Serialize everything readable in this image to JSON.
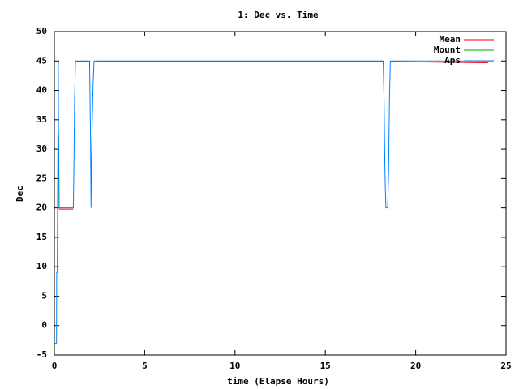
{
  "chart_data": {
    "type": "line",
    "title": "1: Dec vs. Time",
    "x_label": "time (Elapse Hours)",
    "y_label": "Dec",
    "xlim": [
      0,
      25
    ],
    "xticks": [
      0,
      5,
      10,
      15,
      20,
      25
    ],
    "ylim": [
      -5,
      50
    ],
    "yticks": [
      -5,
      0,
      5,
      10,
      15,
      20,
      25,
      30,
      35,
      40,
      45,
      50
    ],
    "legend": "top-right",
    "series": [
      {
        "name": "Mean",
        "color": "#ff0000",
        "x": [
          0.25,
          1.05,
          1.05,
          1.2,
          2.0,
          2.0,
          2.3,
          8.5,
          13.5,
          18.2,
          18.2,
          18.6,
          24.0
        ],
        "values": [
          19.8,
          19.8,
          null,
          44.9,
          44.9,
          null,
          44.9,
          44.9,
          44.9,
          44.9,
          null,
          44.9,
          44.7
        ]
      },
      {
        "name": "Mount",
        "color": "#00a000",
        "x": [
          0.2,
          0.22,
          0.24,
          0.26
        ],
        "values": [
          45,
          33,
          32,
          20
        ]
      },
      {
        "name": "Aps",
        "color": "#0080ff",
        "x": [
          0,
          0.12,
          0.13,
          0.16,
          0.2,
          0.22,
          0.23,
          0.27,
          1.05,
          1.08,
          1.12,
          1.17,
          1.2,
          1.95,
          2.0,
          2.03,
          2.06,
          2.1,
          2.15,
          2.2,
          2.25,
          8.5,
          13.5,
          18.2,
          18.25,
          18.3,
          18.35,
          18.45,
          18.5,
          18.55,
          18.6,
          24.3
        ],
        "values": [
          -3,
          -3,
          9,
          9,
          33,
          45,
          33,
          20,
          20,
          26,
          38.5,
          45,
          45,
          45,
          32.5,
          20,
          28.5,
          35,
          41.5,
          45,
          45,
          45,
          45,
          45,
          38.5,
          26,
          20,
          20,
          26,
          38.5,
          45,
          45
        ]
      }
    ]
  }
}
